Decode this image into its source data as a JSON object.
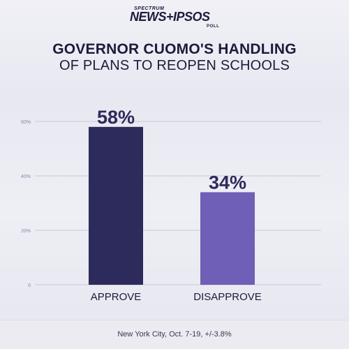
{
  "brand": {
    "line_small": "SPECTRUM",
    "line_main": "NEWS+IPSOS",
    "line_poll": "POLL"
  },
  "title": {
    "line1": "GOVERNOR CUOMO'S HANDLING",
    "line2": "OF PLANS TO REOPEN SCHOOLS"
  },
  "chart_data": {
    "type": "bar",
    "categories": [
      "APPROVE",
      "DISAPPROVE"
    ],
    "values": [
      58,
      34
    ],
    "value_labels": [
      "58%",
      "34%"
    ],
    "colors": [
      "#2d2a5c",
      "#6f5fb6"
    ],
    "ylim": [
      0,
      60
    ],
    "yticks": [
      0,
      20,
      40,
      60
    ],
    "ytick_labels": [
      "0",
      "20%",
      "40%",
      "60%"
    ],
    "grid": true
  },
  "footer": {
    "note": "New York City, Oct. 7-19, +/-3.8%"
  }
}
